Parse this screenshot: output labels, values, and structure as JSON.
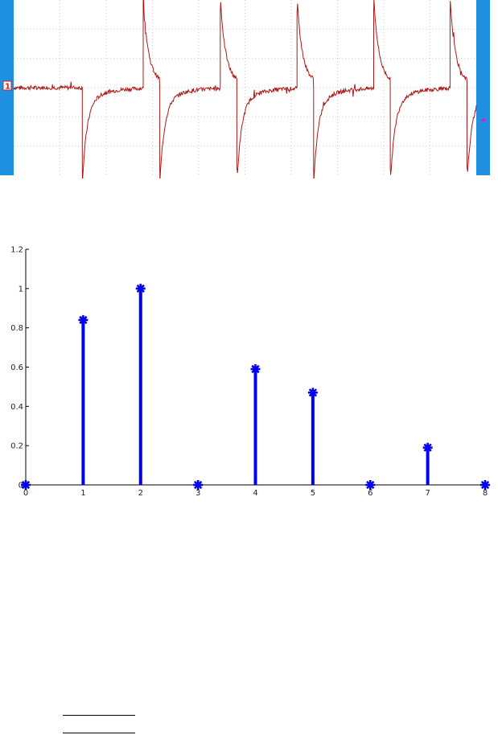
{
  "colors": {
    "scope_bar": "#1f8fe0",
    "trace": "#b01818",
    "grid": "#c4c4c4",
    "stem": "#0000ee",
    "marker_text": "#cc2222",
    "trigger_marker": "#cc22cc",
    "axis": "#000000"
  },
  "scope": {
    "channel_marker": "1",
    "grid": true
  },
  "chart_data": [
    {
      "type": "line",
      "description_kind": "oscilloscope waveform",
      "grid": true,
      "spikes": [
        {
          "x": 0.178,
          "polarity": "down"
        },
        {
          "x": 0.336,
          "polarity": "up"
        },
        {
          "x": 0.379,
          "polarity": "down"
        },
        {
          "x": 0.536,
          "polarity": "up"
        },
        {
          "x": 0.579,
          "polarity": "down"
        },
        {
          "x": 0.735,
          "polarity": "up"
        },
        {
          "x": 0.778,
          "polarity": "down"
        },
        {
          "x": 0.934,
          "polarity": "up"
        },
        {
          "x": 0.977,
          "polarity": "down"
        },
        {
          "x": 1.132,
          "polarity": "up"
        },
        {
          "x": 1.176,
          "polarity": "down"
        }
      ],
      "xlim": [
        0,
        1.2
      ],
      "ylim": [
        -1.1,
        1.1
      ]
    },
    {
      "type": "stem",
      "x": [
        0,
        1,
        2,
        3,
        4,
        5,
        6,
        7,
        8
      ],
      "values": [
        0,
        0.84,
        1.0,
        0,
        0.59,
        0.47,
        0,
        0.19,
        0
      ],
      "xticks": [
        "0",
        "1",
        "2",
        "3",
        "4",
        "5",
        "6",
        "7",
        "8"
      ],
      "yticks": [
        "0",
        "0.2",
        "0.4",
        "0.6",
        "0.8",
        "1",
        "1.2"
      ],
      "xlim": [
        0,
        8
      ],
      "ylim": [
        0,
        1.2
      ],
      "marker": "asterisk",
      "grid": false
    }
  ]
}
